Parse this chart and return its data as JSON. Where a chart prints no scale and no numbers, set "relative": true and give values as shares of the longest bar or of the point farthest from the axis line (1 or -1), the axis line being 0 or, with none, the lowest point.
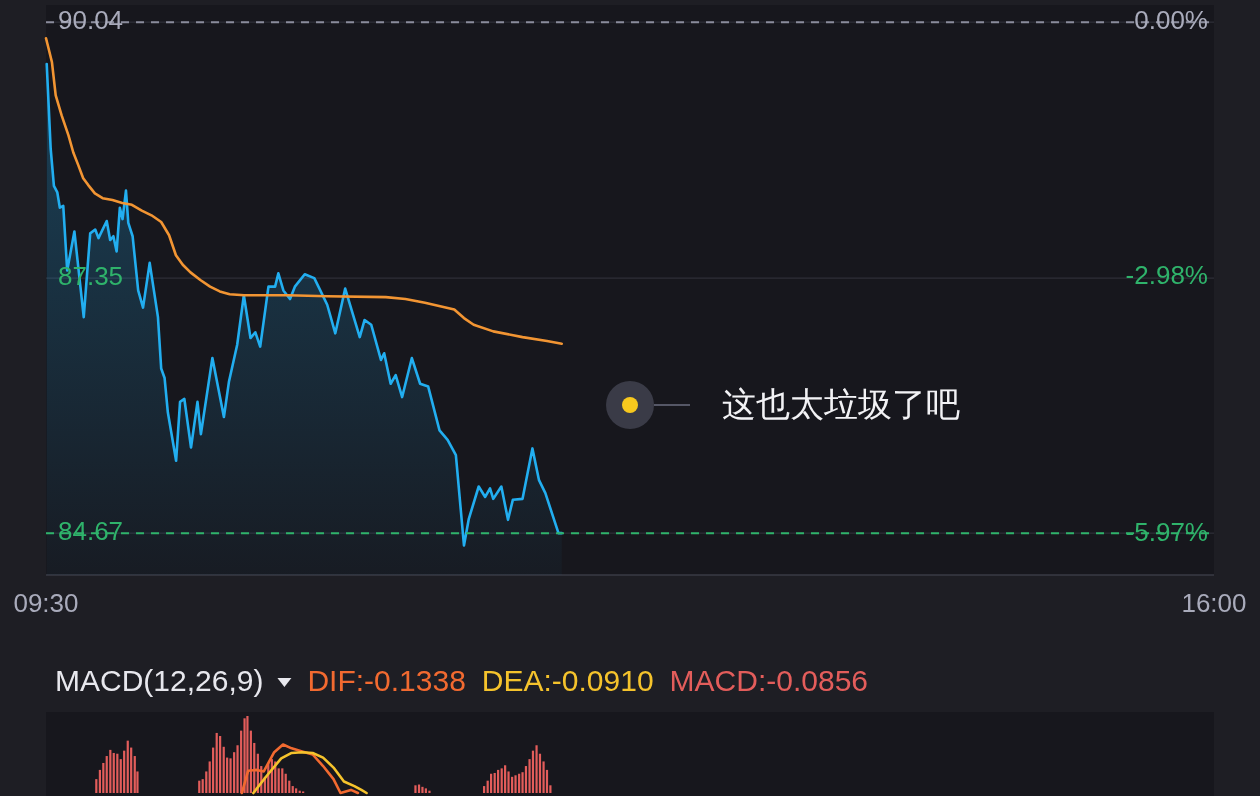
{
  "chart_data": [
    {
      "type": "line",
      "xlim": [
        9.5,
        16
      ],
      "xticks": [
        {
          "value": 9.5,
          "label": "09:30"
        },
        {
          "value": 16,
          "label": "16:00"
        }
      ],
      "ylim": [
        84.23,
        90.22
      ],
      "yticks": [
        90.04,
        87.35,
        84.67
      ],
      "y2lim": [
        -6.45,
        0.2
      ],
      "y2ticks": [
        {
          "value": 0,
          "label": "0.00%"
        },
        {
          "value": -2.98,
          "label": "-2.98%"
        },
        {
          "value": -5.97,
          "label": "-5.97%"
        }
      ],
      "grid": "y",
      "ref_lines": [
        {
          "axis": "y",
          "value": 90.04,
          "color": "#8a8c9c",
          "line_style": "dashed"
        },
        {
          "axis": "y",
          "value": 84.67,
          "color": "#2fb36b",
          "line_style": "dashed"
        }
      ],
      "annotations": [
        "这也太垃圾了吧"
      ],
      "series": [
        {
          "type": "area",
          "color": "#22aef0",
          "x": [
            9.504,
            9.526,
            9.544,
            9.563,
            9.577,
            9.596,
            9.618,
            9.658,
            9.71,
            9.746,
            9.774,
            9.792,
            9.838,
            9.857,
            9.875,
            9.893,
            9.911,
            9.926,
            9.945,
            9.958,
            9.982,
            10.013,
            10.04,
            10.077,
            10.123,
            10.141,
            10.16,
            10.178,
            10.224,
            10.246,
            10.27,
            10.307,
            10.343,
            10.362,
            10.426,
            10.49,
            10.518,
            10.564,
            10.601,
            10.638,
            10.665,
            10.692,
            10.738,
            10.775,
            10.793,
            10.821,
            10.858,
            10.885,
            10.94,
            10.993,
            11.029,
            11.065,
            11.11,
            11.165,
            11.246,
            11.273,
            11.31,
            11.364,
            11.382,
            11.418,
            11.446,
            11.482,
            11.536,
            11.582,
            11.627,
            11.69,
            11.735,
            11.781,
            11.826,
            11.853,
            11.908,
            11.944,
            11.971,
            11.989,
            12.034,
            12.071,
            12.098,
            12.152,
            12.207,
            12.243,
            12.279,
            12.352,
            12.37
          ],
          "values": [
            89.6,
            88.71,
            88.32,
            88.25,
            88.09,
            88.11,
            87.43,
            87.84,
            86.94,
            87.82,
            87.86,
            87.77,
            87.95,
            87.75,
            87.79,
            87.63,
            88.09,
            87.97,
            88.27,
            87.93,
            87.79,
            87.22,
            87.04,
            87.51,
            86.94,
            86.4,
            86.3,
            85.94,
            85.43,
            86.05,
            86.08,
            85.57,
            86.05,
            85.71,
            86.51,
            85.89,
            86.26,
            86.65,
            87.17,
            86.72,
            86.78,
            86.63,
            87.26,
            87.26,
            87.4,
            87.22,
            87.13,
            87.26,
            87.39,
            87.35,
            87.21,
            87.07,
            86.77,
            87.24,
            86.73,
            86.91,
            86.86,
            86.49,
            86.56,
            86.24,
            86.33,
            86.1,
            86.51,
            86.24,
            86.21,
            85.75,
            85.65,
            85.49,
            84.54,
            84.82,
            85.16,
            85.05,
            85.14,
            85.03,
            85.16,
            84.81,
            85.02,
            85.03,
            85.56,
            85.23,
            85.09,
            84.67,
            84.67
          ]
        },
        {
          "color": "#f29533",
          "x": [
            9.5,
            9.516,
            9.533,
            9.554,
            9.587,
            9.625,
            9.652,
            9.679,
            9.707,
            9.734,
            9.772,
            9.815,
            9.87,
            9.924,
            9.978,
            10.033,
            10.087,
            10.141,
            10.185,
            10.223,
            10.261,
            10.304,
            10.359,
            10.413,
            10.467,
            10.522,
            10.603,
            10.848,
            11.065,
            11.391,
            11.5,
            11.609,
            11.772,
            11.826,
            11.88,
            11.989,
            12.152,
            12.288,
            12.37
          ],
          "values": [
            89.87,
            89.75,
            89.62,
            89.27,
            89.06,
            88.85,
            88.67,
            88.54,
            88.4,
            88.33,
            88.24,
            88.19,
            88.17,
            88.14,
            88.12,
            88.06,
            88.01,
            87.94,
            87.8,
            87.59,
            87.49,
            87.41,
            87.33,
            87.26,
            87.21,
            87.18,
            87.17,
            87.17,
            87.16,
            87.15,
            87.13,
            87.09,
            87.02,
            86.93,
            86.86,
            86.79,
            86.73,
            86.69,
            86.66
          ]
        }
      ]
    },
    {
      "type": "bar",
      "title": "MACD(12,26,9)",
      "relative": true,
      "xlim": [
        9.5,
        16
      ],
      "legend": "top left",
      "series": [
        {
          "name": "DIF:-0.1338",
          "type": "line",
          "color": "#f26a30",
          "x": [
            10.59,
            10.625,
            10.673,
            10.712,
            10.77,
            10.819,
            10.867,
            10.925,
            10.984,
            11.042,
            11.1,
            11.139,
            11.197,
            11.236
          ],
          "values": [
            0,
            0.29,
            0.3,
            0.28,
            0.53,
            0.63,
            0.58,
            0.54,
            0.5,
            0.35,
            0.18,
            0,
            0.04,
            0
          ]
        },
        {
          "name": "DEA:-0.0910",
          "type": "line",
          "color": "#f5c32c",
          "x": [
            10.654,
            10.731,
            10.809,
            10.867,
            10.925,
            10.984,
            11.042,
            11.1,
            11.158,
            11.216,
            11.255,
            11.284
          ],
          "values": [
            0,
            0.23,
            0.45,
            0.52,
            0.53,
            0.52,
            0.46,
            0.33,
            0.15,
            0.09,
            0.04,
            0
          ]
        },
        {
          "name": "MACD:-0.0856",
          "color": "#e35d5b",
          "x": [
            9.78,
            9.8,
            9.819,
            9.838,
            9.858,
            9.877,
            9.897,
            9.916,
            9.935,
            9.955,
            9.974,
            9.994,
            10.009,
            10.353,
            10.372,
            10.392,
            10.411,
            10.43,
            10.45,
            10.469,
            10.489,
            10.508,
            10.527,
            10.547,
            10.566,
            10.586,
            10.605,
            10.621,
            10.64,
            10.659,
            10.679,
            10.698,
            10.718,
            10.737,
            10.757,
            10.776,
            10.795,
            10.815,
            10.834,
            10.854,
            10.873,
            10.892,
            10.912,
            10.931,
            11.556,
            11.576,
            11.595,
            11.614,
            11.634,
            11.938,
            11.958,
            11.977,
            11.997,
            12.016,
            12.036,
            12.055,
            12.074,
            12.094,
            12.113,
            12.133,
            12.152,
            12.171,
            12.191,
            12.21,
            12.23,
            12.249,
            12.269,
            12.288,
            12.307
          ],
          "values": [
            0.18,
            0.3,
            0.39,
            0.48,
            0.56,
            0.52,
            0.51,
            0.44,
            0.55,
            0.68,
            0.59,
            0.48,
            0.28,
            0.16,
            0.18,
            0.28,
            0.41,
            0.59,
            0.78,
            0.74,
            0.6,
            0.46,
            0.45,
            0.53,
            0.62,
            0.81,
            0.97,
            1,
            0.81,
            0.65,
            0.51,
            0.35,
            0.21,
            0.39,
            0.44,
            0.41,
            0.32,
            0.32,
            0.25,
            0.16,
            0.09,
            0.06,
            0.03,
            0.02,
            0.1,
            0.11,
            0.08,
            0.06,
            0.03,
            0.09,
            0.16,
            0.25,
            0.26,
            0.3,
            0.32,
            0.36,
            0.28,
            0.21,
            0.23,
            0.25,
            0.27,
            0.35,
            0.44,
            0.55,
            0.62,
            0.51,
            0.41,
            0.3,
            0.1
          ]
        }
      ]
    }
  ]
}
